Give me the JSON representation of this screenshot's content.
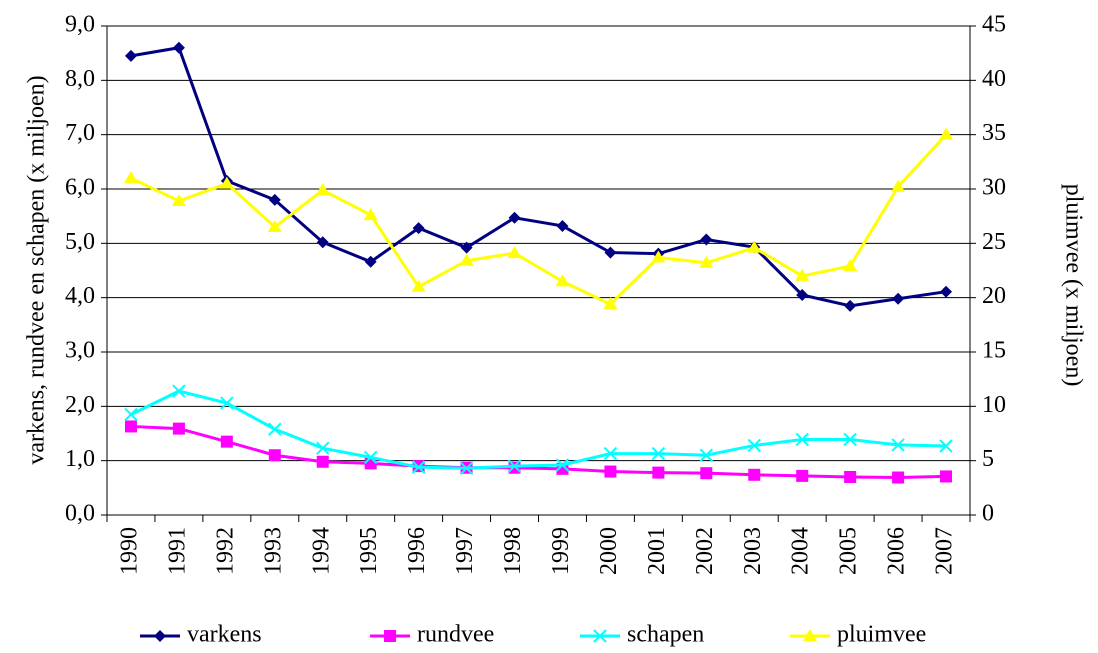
{
  "chart_data": {
    "type": "line",
    "y_label": "varkens, rundvee en schapen (x miljoen)",
    "y2_label": "pluimvee (x miljoen)",
    "categories": [
      "1990",
      "1991",
      "1992",
      "1993",
      "1994",
      "1995",
      "1996",
      "1997",
      "1998",
      "1999",
      "2000",
      "2001",
      "2002",
      "2003",
      "2004",
      "2005",
      "2006",
      "2007"
    ],
    "series": [
      {
        "name": "varkens",
        "color": "#000080",
        "marker": "diamond",
        "values": [
          8.45,
          8.6,
          6.15,
          5.8,
          5.02,
          4.66,
          5.28,
          4.92,
          5.47,
          5.32,
          4.83,
          4.81,
          5.07,
          4.93,
          4.05,
          3.85,
          3.98,
          4.11
        ]
      },
      {
        "name": "rundvee",
        "color": "#ff00ff",
        "marker": "square",
        "values": [
          1.63,
          1.59,
          1.35,
          1.1,
          0.98,
          0.95,
          0.9,
          0.87,
          0.87,
          0.85,
          0.8,
          0.78,
          0.77,
          0.74,
          0.72,
          0.7,
          0.69,
          0.71
        ]
      },
      {
        "name": "schapen",
        "color": "#00ffff",
        "marker": "x",
        "values": [
          1.85,
          2.28,
          2.06,
          1.58,
          1.23,
          1.06,
          0.88,
          0.86,
          0.9,
          0.92,
          1.13,
          1.13,
          1.1,
          1.28,
          1.39,
          1.39,
          1.29,
          1.27
        ]
      },
      {
        "name": "pluimvee",
        "color": "#ffff00",
        "marker": "triangle",
        "axis": "y2",
        "values": [
          31.0,
          28.9,
          30.5,
          26.5,
          29.9,
          27.6,
          21.0,
          23.4,
          24.1,
          21.5,
          19.4,
          23.7,
          23.2,
          24.6,
          22.0,
          22.9,
          30.2,
          35.0
        ]
      }
    ],
    "ylim": [
      0,
      9
    ],
    "yticks": [
      {
        "value": 0,
        "label": "0,0"
      },
      {
        "value": 1,
        "label": "1,0"
      },
      {
        "value": 2,
        "label": "2,0"
      },
      {
        "value": 3,
        "label": "3,0"
      },
      {
        "value": 4,
        "label": "4,0"
      },
      {
        "value": 5,
        "label": "5,0"
      },
      {
        "value": 6,
        "label": "6,0"
      },
      {
        "value": 7,
        "label": "7,0"
      },
      {
        "value": 8,
        "label": "8,0"
      },
      {
        "value": 9,
        "label": "9,0"
      }
    ],
    "y2lim": [
      0,
      45
    ],
    "y2ticks": [
      0,
      5,
      10,
      15,
      20,
      25,
      30,
      35,
      40,
      45
    ],
    "grid": true,
    "legend": "bottom"
  }
}
